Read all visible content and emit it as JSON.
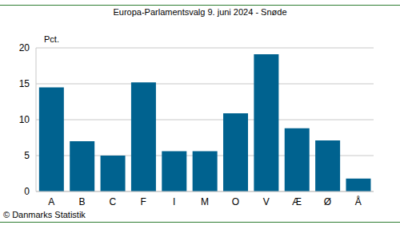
{
  "chart_data": {
    "type": "bar",
    "title": "Europa-Parlamentsvalg 9. juni 2024 - Snøde",
    "y_label": "Pct.",
    "source": "© Danmarks Statistik",
    "categories": [
      "A",
      "B",
      "C",
      "F",
      "I",
      "M",
      "O",
      "V",
      "Æ",
      "Ø",
      "Å"
    ],
    "values": [
      14.5,
      7.0,
      5.0,
      15.2,
      5.6,
      5.6,
      10.9,
      19.1,
      8.8,
      7.1,
      1.8
    ],
    "color": "#00628f",
    "ylim": [
      0,
      20
    ],
    "yticks": [
      0,
      5,
      10,
      15,
      20
    ],
    "grid": true
  }
}
